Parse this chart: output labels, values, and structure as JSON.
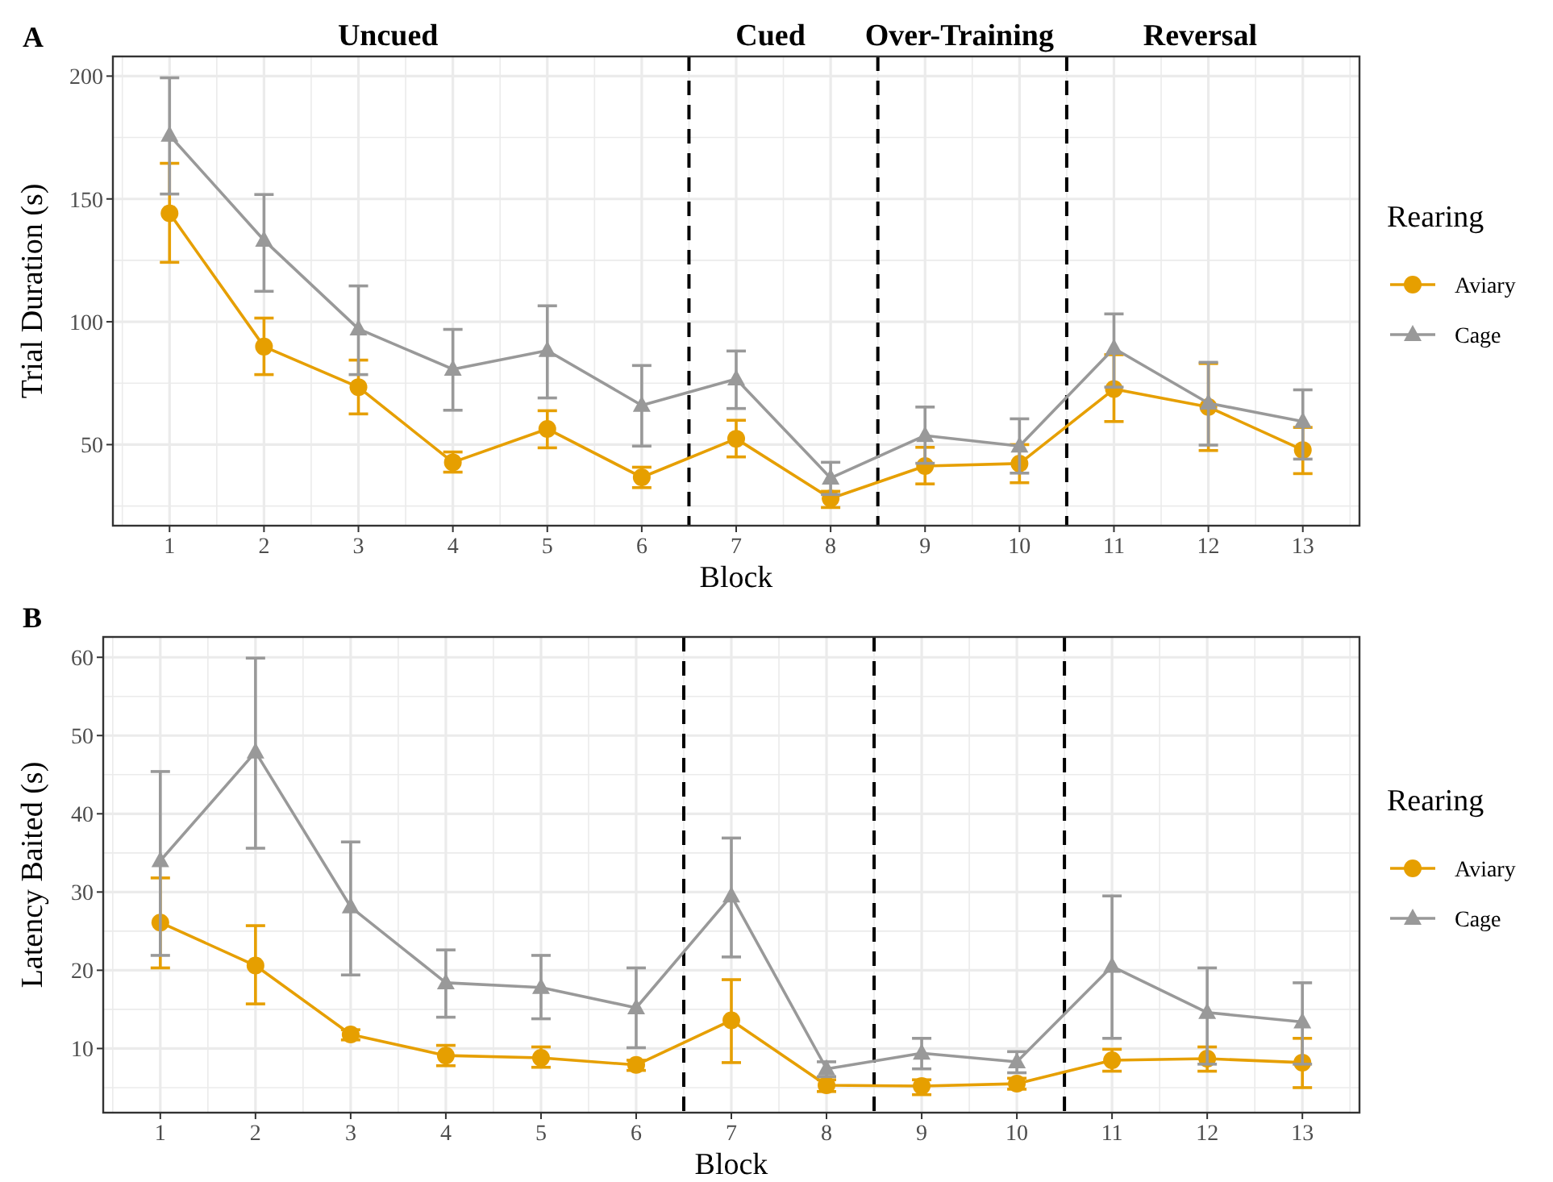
{
  "chart_data": [
    {
      "type": "line",
      "title": "A",
      "xlabel": "Block",
      "ylabel": "Trial Duration (s)",
      "legend_title": "Rearing",
      "legend": "right",
      "grid": true,
      "x": [
        1,
        2,
        3,
        4,
        5,
        6,
        7,
        8,
        9,
        10,
        11,
        12,
        13
      ],
      "xlim": [
        0.4,
        13.6
      ],
      "xticks": [
        1,
        2,
        3,
        4,
        5,
        6,
        7,
        8,
        9,
        10,
        11,
        12,
        13
      ],
      "ylim": [
        17,
        208
      ],
      "yticks": [
        50,
        100,
        150,
        200
      ],
      "ref_lines": [
        {
          "axis": "x",
          "value": 6.5,
          "line_style": "dashed",
          "color": "#000000"
        },
        {
          "axis": "x",
          "value": 8.5,
          "line_style": "dashed",
          "color": "#000000"
        },
        {
          "axis": "x",
          "value": 10.5,
          "line_style": "dashed",
          "color": "#000000"
        }
      ],
      "annotations": [
        "Uncued",
        "Cued",
        "Over-Training",
        "Reversal"
      ],
      "series": [
        {
          "name": "Aviary",
          "color": "#e69f00",
          "marker": "circle",
          "values": [
            144.2,
            89.9,
            73.4,
            42.8,
            56.4,
            36.7,
            52.4,
            28.1,
            41.3,
            42.3,
            72.6,
            65.3,
            47.8
          ],
          "errors": [
            [
              124.2,
              164.5
            ],
            [
              78.5,
              101.5
            ],
            [
              62.5,
              84.4
            ],
            [
              38.8,
              47
            ],
            [
              48.7,
              63.8
            ],
            [
              32.5,
              40.8
            ],
            [
              45,
              59.9
            ],
            [
              24.4,
              31
            ],
            [
              34,
              48.9
            ],
            [
              34.5,
              50
            ],
            [
              59.4,
              86.6
            ],
            [
              47.6,
              83
            ],
            [
              38.2,
              57
            ]
          ]
        },
        {
          "name": "Cage",
          "color": "#999999",
          "marker": "triangle",
          "values": [
            175.9,
            133.2,
            97.1,
            80.7,
            88.3,
            66,
            76.7,
            36.4,
            53.7,
            49.4,
            89.2,
            66.9,
            59.4
          ],
          "errors": [
            [
              152,
              199.3
            ],
            [
              112.4,
              151.8
            ],
            [
              78.5,
              114.6
            ],
            [
              64,
              96.9
            ],
            [
              69,
              106.5
            ],
            [
              49.4,
              82.2
            ],
            [
              64.7,
              88.1
            ],
            [
              29.7,
              42.8
            ],
            [
              42.4,
              65.3
            ],
            [
              38.4,
              60.5
            ],
            [
              73.4,
              103.2
            ],
            [
              49.8,
              83.5
            ],
            [
              44.1,
              72.3
            ]
          ]
        }
      ]
    },
    {
      "type": "line",
      "title": "B",
      "xlabel": "Block",
      "ylabel": "Latency Baited (s)",
      "legend_title": "Rearing",
      "legend": "right",
      "grid": true,
      "x": [
        1,
        2,
        3,
        4,
        5,
        6,
        7,
        8,
        9,
        10,
        11,
        12,
        13
      ],
      "xlim": [
        0.4,
        13.6
      ],
      "xticks": [
        1,
        2,
        3,
        4,
        5,
        6,
        7,
        8,
        9,
        10,
        11,
        12,
        13
      ],
      "ylim": [
        1.8,
        62.6
      ],
      "yticks": [
        10,
        20,
        30,
        40,
        50,
        60
      ],
      "ref_lines": [
        {
          "axis": "x",
          "value": 6.5,
          "line_style": "dashed",
          "color": "#000000"
        },
        {
          "axis": "x",
          "value": 8.5,
          "line_style": "dashed",
          "color": "#000000"
        },
        {
          "axis": "x",
          "value": 10.5,
          "line_style": "dashed",
          "color": "#000000"
        }
      ],
      "series": [
        {
          "name": "Aviary",
          "color": "#e69f00",
          "marker": "circle",
          "values": [
            26.1,
            20.6,
            11.8,
            9.1,
            8.8,
            7.9,
            13.6,
            5.3,
            5.2,
            5.5,
            8.5,
            8.7,
            8.2
          ],
          "errors": [
            [
              20.3,
              31.8
            ],
            [
              15.7,
              25.7
            ],
            [
              11.1,
              12.4
            ],
            [
              7.8,
              10.4
            ],
            [
              7.6,
              10.2
            ],
            [
              7.2,
              8.5
            ],
            [
              8.2,
              18.8
            ],
            [
              4.5,
              6
            ],
            [
              4.1,
              6
            ],
            [
              4.8,
              6.2
            ],
            [
              7.1,
              9.9
            ],
            [
              7.1,
              10.2
            ],
            [
              5,
              11.3
            ]
          ]
        },
        {
          "name": "Cage",
          "color": "#999999",
          "marker": "triangle",
          "values": [
            34,
            47.9,
            28.1,
            18.4,
            17.8,
            15.2,
            29.5,
            7.4,
            9.4,
            8.3,
            20.5,
            14.6,
            13.4
          ],
          "errors": [
            [
              21.9,
              45.4
            ],
            [
              35.6,
              59.9
            ],
            [
              19.4,
              36.4
            ],
            [
              14,
              22.6
            ],
            [
              13.8,
              21.9
            ],
            [
              10.1,
              20.3
            ],
            [
              21.7,
              36.9
            ],
            [
              6.4,
              8.3
            ],
            [
              7.4,
              11.3
            ],
            [
              6.9,
              9.6
            ],
            [
              11.3,
              29.5
            ],
            [
              8,
              20.3
            ],
            [
              8,
              18.4
            ]
          ]
        }
      ]
    }
  ]
}
